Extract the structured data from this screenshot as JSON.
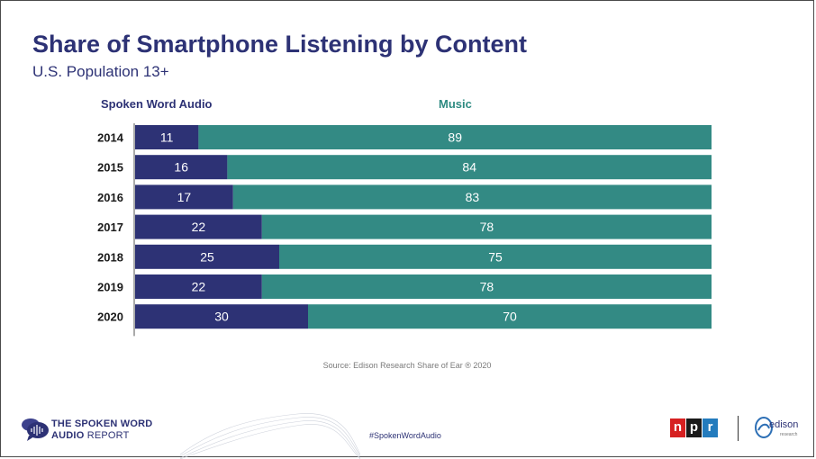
{
  "title": "Share of Smartphone Listening by Content",
  "subtitle": "U.S. Population 13+",
  "legend": {
    "spoken": "Spoken Word Audio",
    "music": "Music"
  },
  "source": "Source: Edison Research Share of Ear ® 2020",
  "footer": {
    "brand_line1": "THE SPOKEN WORD",
    "brand_line2_bold": "AUDIO",
    "brand_line2_rest": " REPORT",
    "hashtag": "#SpokenWordAudio",
    "npr_letters": [
      "n",
      "p",
      "r"
    ],
    "edison_word": "edison",
    "edison_sub": "research"
  },
  "colors": {
    "spoken": "#2d3275",
    "music": "#338a84",
    "title": "#2d3275"
  },
  "chart_data": {
    "type": "bar",
    "orientation": "horizontal",
    "stacked": true,
    "categories": [
      "2014",
      "2015",
      "2016",
      "2017",
      "2018",
      "2019",
      "2020"
    ],
    "series": [
      {
        "name": "Spoken Word Audio",
        "values": [
          11,
          16,
          17,
          22,
          25,
          22,
          30
        ]
      },
      {
        "name": "Music",
        "values": [
          89,
          84,
          83,
          78,
          75,
          78,
          70
        ]
      }
    ],
    "xlim": [
      0,
      100
    ],
    "grid": false,
    "legend_position": "top"
  }
}
